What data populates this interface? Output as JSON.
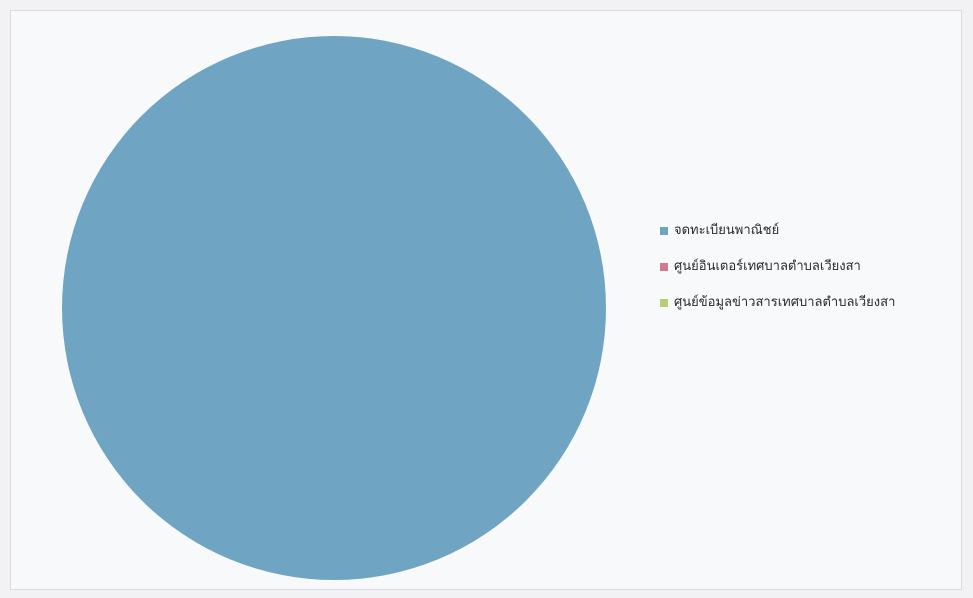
{
  "chart_data": {
    "type": "pie",
    "title": "",
    "categories": [
      "จดทะเบียนพาณิชย์",
      "ศูนย์อินเตอร์เทศบาลตำบลเวียงสา",
      "ศูนย์ข้อมูลข่าวสารเทศบาลตำบลเวียงสา"
    ],
    "values": [
      100,
      0,
      0
    ],
    "colors": [
      "#6fa5c3",
      "#d27b8e",
      "#b7cf73"
    ],
    "legend": "right"
  }
}
